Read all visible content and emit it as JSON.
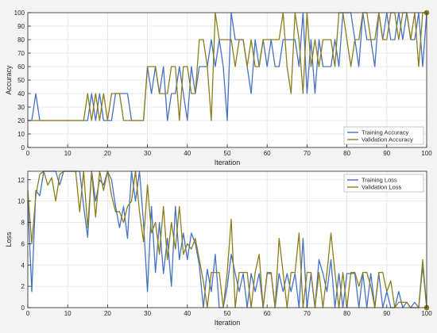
{
  "colors": {
    "background": "#f3f3f3",
    "plot_bg": "#ffffff",
    "grid": "#e2e2e2",
    "axis": "#262626",
    "training": "#4472c4",
    "validation": "#8c7d1c"
  },
  "chart_data": [
    {
      "type": "line",
      "xlabel": "Iteration",
      "ylabel": "Accuracy",
      "xlim": [
        0,
        100
      ],
      "ylim": [
        0,
        100
      ],
      "xticks": [
        0,
        10,
        20,
        30,
        40,
        50,
        60,
        70,
        80,
        90,
        100
      ],
      "yticks": [
        0,
        10,
        20,
        30,
        40,
        50,
        60,
        70,
        80,
        90,
        100
      ],
      "grid": true,
      "legend": "bottom-right",
      "series": [
        {
          "name": "Training Accuracy",
          "color": "#4472c4",
          "x": [
            0,
            1,
            2,
            3,
            4,
            5,
            6,
            7,
            8,
            9,
            10,
            11,
            12,
            13,
            14,
            15,
            16,
            17,
            18,
            19,
            20,
            21,
            22,
            23,
            24,
            25,
            26,
            27,
            28,
            29,
            30,
            31,
            32,
            33,
            34,
            35,
            36,
            37,
            38,
            39,
            40,
            41,
            42,
            43,
            44,
            45,
            46,
            47,
            48,
            49,
            50,
            51,
            52,
            53,
            54,
            55,
            56,
            57,
            58,
            59,
            60,
            61,
            62,
            63,
            64,
            65,
            66,
            67,
            68,
            69,
            70,
            71,
            72,
            73,
            74,
            75,
            76,
            77,
            78,
            79,
            80,
            81,
            82,
            83,
            84,
            85,
            86,
            87,
            88,
            89,
            90,
            91,
            92,
            93,
            94,
            95,
            96,
            97,
            98,
            99,
            100
          ],
          "y": [
            20,
            20,
            40,
            20,
            20,
            20,
            20,
            20,
            20,
            20,
            20,
            20,
            20,
            20,
            20,
            20,
            40,
            20,
            40,
            20,
            20,
            20,
            40,
            40,
            40,
            40,
            20,
            20,
            20,
            20,
            60,
            40,
            60,
            40,
            60,
            20,
            40,
            40,
            60,
            40,
            20,
            60,
            40,
            60,
            60,
            60,
            80,
            60,
            80,
            60,
            20,
            100,
            80,
            80,
            80,
            60,
            40,
            80,
            60,
            80,
            60,
            80,
            60,
            60,
            80,
            80,
            80,
            80,
            60,
            100,
            40,
            80,
            40,
            80,
            60,
            60,
            60,
            80,
            60,
            100,
            100,
            100,
            80,
            60,
            100,
            80,
            80,
            60,
            100,
            80,
            100,
            80,
            80,
            100,
            80,
            100,
            80,
            80,
            100,
            60,
            100
          ]
        },
        {
          "name": "Validation Accuracy",
          "color": "#8c7d1c",
          "x": [
            0,
            1,
            2,
            3,
            4,
            5,
            6,
            7,
            8,
            9,
            10,
            11,
            12,
            13,
            14,
            15,
            16,
            17,
            18,
            19,
            20,
            21,
            22,
            23,
            24,
            25,
            26,
            27,
            28,
            29,
            30,
            31,
            32,
            33,
            34,
            35,
            36,
            37,
            38,
            39,
            40,
            41,
            42,
            43,
            44,
            45,
            46,
            47,
            48,
            49,
            50,
            51,
            52,
            53,
            54,
            55,
            56,
            57,
            58,
            59,
            60,
            61,
            62,
            63,
            64,
            65,
            66,
            67,
            68,
            69,
            70,
            71,
            72,
            73,
            74,
            75,
            76,
            77,
            78,
            79,
            80,
            81,
            82,
            83,
            84,
            85,
            86,
            87,
            88,
            89,
            90,
            91,
            92,
            93,
            94,
            95,
            96,
            97,
            98,
            99,
            100
          ],
          "y": [
            20,
            20,
            20,
            20,
            20,
            20,
            20,
            20,
            20,
            20,
            20,
            20,
            20,
            20,
            20,
            40,
            20,
            40,
            20,
            40,
            20,
            40,
            40,
            40,
            20,
            20,
            20,
            20,
            20,
            20,
            60,
            60,
            60,
            40,
            40,
            40,
            60,
            60,
            20,
            60,
            60,
            40,
            40,
            80,
            80,
            60,
            20,
            100,
            80,
            80,
            80,
            80,
            60,
            80,
            80,
            60,
            80,
            60,
            60,
            80,
            80,
            80,
            80,
            80,
            100,
            60,
            40,
            100,
            80,
            40,
            100,
            60,
            80,
            60,
            80,
            80,
            80,
            60,
            100,
            100,
            80,
            60,
            80,
            80,
            100,
            100,
            80,
            80,
            100,
            80,
            80,
            100,
            100,
            80,
            100,
            100,
            80,
            100,
            60,
            100,
            100
          ]
        }
      ]
    },
    {
      "type": "line",
      "xlabel": "Iteration",
      "ylabel": "Loss",
      "xlim": [
        0,
        100
      ],
      "ylim": [
        0,
        12.8
      ],
      "xticks": [
        0,
        10,
        20,
        30,
        40,
        50,
        60,
        70,
        80,
        90,
        100
      ],
      "yticks": [
        0,
        2,
        4,
        6,
        8,
        10,
        12
      ],
      "grid": true,
      "legend": "top-right",
      "series": [
        {
          "name": "Training Loss",
          "color": "#4472c4",
          "x": [
            0,
            1,
            2,
            3,
            4,
            5,
            6,
            7,
            8,
            9,
            10,
            11,
            12,
            13,
            14,
            15,
            16,
            17,
            18,
            19,
            20,
            21,
            22,
            23,
            24,
            25,
            26,
            27,
            28,
            29,
            30,
            31,
            32,
            33,
            34,
            35,
            36,
            37,
            38,
            39,
            40,
            41,
            42,
            43,
            44,
            45,
            46,
            47,
            48,
            49,
            50,
            51,
            52,
            53,
            54,
            55,
            56,
            57,
            58,
            59,
            60,
            61,
            62,
            63,
            64,
            65,
            66,
            67,
            68,
            69,
            70,
            71,
            72,
            73,
            74,
            75,
            76,
            77,
            78,
            79,
            80,
            81,
            82,
            83,
            84,
            85,
            86,
            87,
            88,
            89,
            90,
            91,
            92,
            93,
            94,
            95,
            96,
            97,
            98,
            99,
            100
          ],
          "y": [
            10,
            1.5,
            11,
            10.5,
            12.8,
            12.8,
            12.8,
            12.8,
            11.5,
            12.8,
            12.8,
            12.8,
            12.8,
            12.8,
            9.5,
            6.6,
            12.8,
            10,
            12,
            11.5,
            12.8,
            12,
            9.5,
            7.5,
            9.5,
            6.5,
            12.8,
            10,
            12.8,
            8,
            1.5,
            9.5,
            3.3,
            8,
            3.2,
            6.5,
            2,
            9.5,
            4.5,
            7,
            4.5,
            7,
            6,
            4,
            0,
            3.6,
            1.5,
            5,
            0,
            0,
            2,
            5,
            3.2,
            1.5,
            3.2,
            0,
            3.2,
            1.5,
            3.2,
            0,
            3.2,
            3.2,
            0,
            3.2,
            1.5,
            3.2,
            1.5,
            3.2,
            0,
            6.5,
            0,
            3.2,
            0,
            4.5,
            3.2,
            1.5,
            4.5,
            0,
            3.2,
            0,
            3.2,
            3.2,
            3.2,
            0,
            3.2,
            0,
            3.2,
            0,
            3.2,
            0,
            1.5,
            0,
            0,
            1.5,
            0,
            0.5,
            0,
            0.5,
            0,
            3.9,
            0
          ]
        },
        {
          "name": "Validation Loss",
          "color": "#8c7d1c",
          "x": [
            0,
            1,
            2,
            3,
            4,
            5,
            6,
            7,
            8,
            9,
            10,
            11,
            12,
            13,
            14,
            15,
            16,
            17,
            18,
            19,
            20,
            21,
            22,
            23,
            24,
            25,
            26,
            27,
            28,
            29,
            30,
            31,
            32,
            33,
            34,
            35,
            36,
            37,
            38,
            39,
            40,
            41,
            42,
            43,
            44,
            45,
            46,
            47,
            48,
            49,
            50,
            51,
            52,
            53,
            54,
            55,
            56,
            57,
            58,
            59,
            60,
            61,
            62,
            63,
            64,
            65,
            66,
            67,
            68,
            69,
            70,
            71,
            72,
            73,
            74,
            75,
            76,
            77,
            78,
            79,
            80,
            81,
            82,
            83,
            84,
            85,
            86,
            87,
            88,
            89,
            90,
            91,
            92,
            93,
            94,
            95,
            96,
            97,
            98,
            99,
            100
          ],
          "y": [
            11,
            6,
            10.5,
            12.5,
            12.8,
            11.5,
            12.2,
            10,
            12.5,
            12.8,
            12.8,
            12.8,
            12.8,
            9,
            12.8,
            7.5,
            12.8,
            8.5,
            12.8,
            11,
            12.8,
            10.5,
            9,
            9,
            8,
            9.5,
            10,
            12.8,
            9,
            6.2,
            11.5,
            7,
            8,
            5,
            9.5,
            4.5,
            8,
            5.5,
            9.5,
            5,
            6,
            5.5,
            6.5,
            4.5,
            2.5,
            0,
            3.3,
            3.3,
            3.3,
            0,
            3.3,
            8.3,
            0,
            3.3,
            3.3,
            3.3,
            0,
            3.3,
            5,
            0,
            3.3,
            3.3,
            0,
            6.5,
            3.3,
            0,
            3.3,
            3.3,
            7,
            0,
            3.3,
            3.3,
            0,
            3.3,
            0,
            3.3,
            7,
            3.3,
            0,
            3.3,
            0,
            3.3,
            3.3,
            2,
            3.3,
            3.3,
            2,
            0,
            3.3,
            3.3,
            1.5,
            2.5,
            0,
            0.5,
            0.5,
            0.5,
            0,
            0,
            0,
            4.5,
            0
          ]
        }
      ]
    }
  ]
}
